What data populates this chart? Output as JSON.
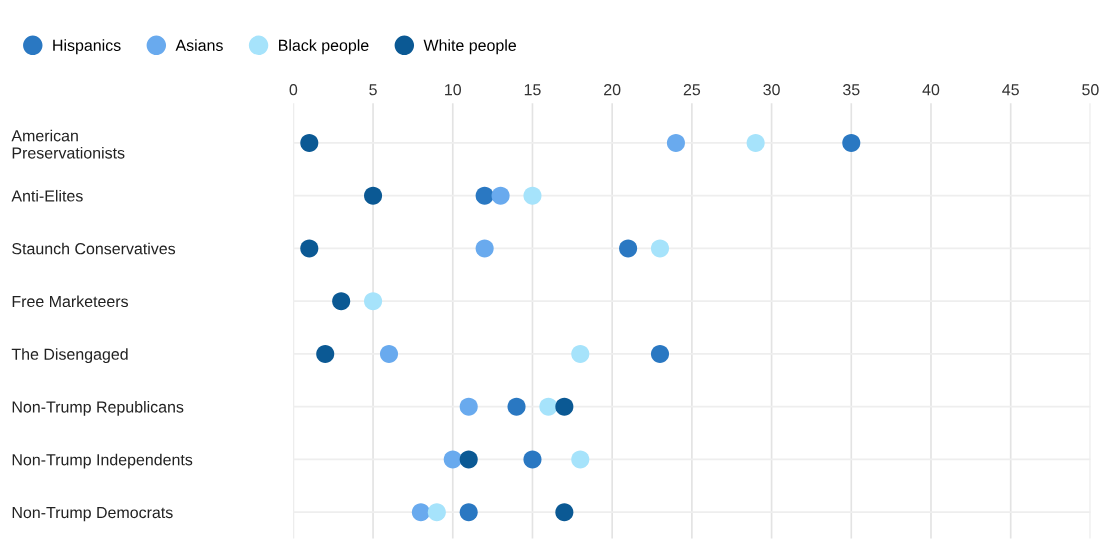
{
  "chart_data": {
    "type": "scatter",
    "categories": [
      "American\nPreservationists",
      "Anti-Elites",
      "Staunch Conservatives",
      "Free Marketeers",
      "The Disengaged",
      "Non-Trump Republicans",
      "Non-Trump Independents",
      "Non-Trump Democrats"
    ],
    "orientation": "horizontal",
    "series": [
      {
        "name": "Hispanics",
        "color": "#2a78c2",
        "values": [
          35,
          12,
          21,
          null,
          23,
          14,
          15,
          11
        ]
      },
      {
        "name": "Asians",
        "color": "#69aaee",
        "values": [
          24,
          13,
          12,
          null,
          6,
          11,
          10,
          8
        ]
      },
      {
        "name": "Black people",
        "color": "#a6e3fb",
        "values": [
          29,
          15,
          23,
          5,
          18,
          16,
          18,
          9
        ]
      },
      {
        "name": "White people",
        "color": "#0b5994",
        "values": [
          1,
          5,
          1,
          3,
          2,
          17,
          11,
          17
        ]
      }
    ],
    "xlim": [
      0,
      50
    ],
    "xticks": [
      0,
      5,
      10,
      15,
      20,
      25,
      30,
      35,
      40,
      45,
      50
    ],
    "grid": true,
    "legend": "top left",
    "marker": "circle"
  }
}
